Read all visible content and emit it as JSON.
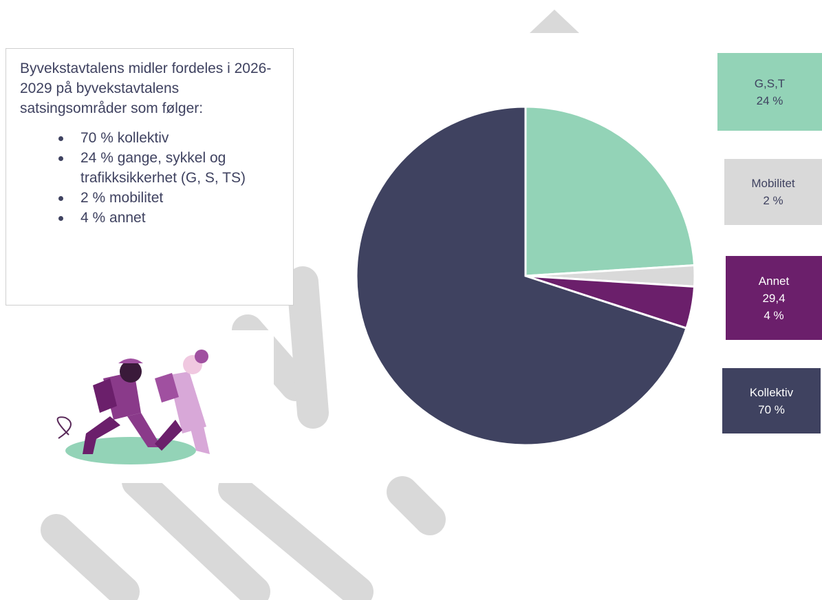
{
  "text_box": {
    "intro": "Byvekstavtalens midler fordeles i 2026-2029 på byvekstavtalens satsingsområder som følger:",
    "bullets": [
      "70 % kollektiv",
      "24 % gange, sykkel og trafikksikkerhet (G, S, TS)",
      "2 % mobilitet",
      "4 % annet"
    ]
  },
  "chart_data": {
    "type": "pie",
    "categories": [
      "G,S,T",
      "Mobilitet",
      "Annet",
      "Kollektiv"
    ],
    "values": [
      24,
      2,
      4,
      70
    ],
    "value_labels": [
      "24 %",
      "2 %",
      "4 %",
      "70 %"
    ],
    "colors": [
      "#93d3b7",
      "#d9d9d9",
      "#6b1f6b",
      "#3f4260"
    ],
    "annotations": [
      "29,4"
    ]
  }
}
